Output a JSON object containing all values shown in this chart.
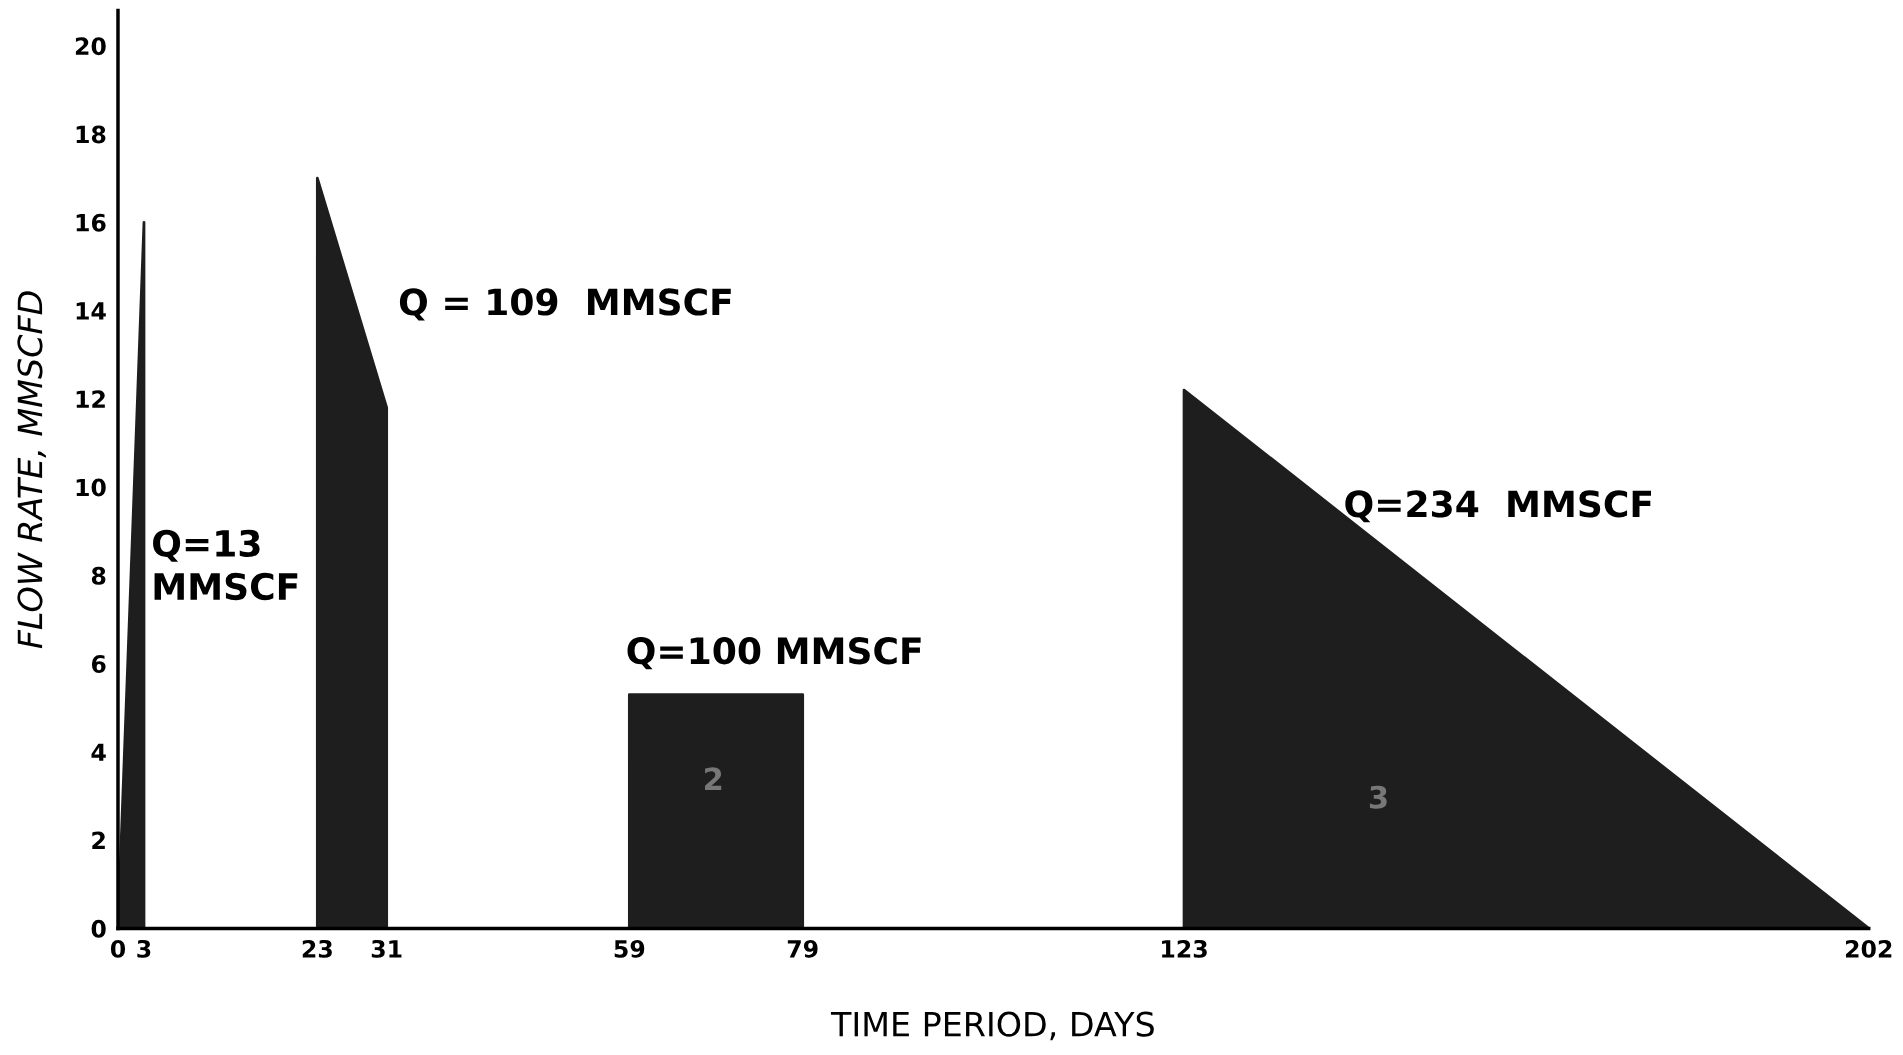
{
  "chart_data": {
    "type": "area",
    "xlabel": "TIME PERIOD, DAYS",
    "ylabel": "FLOW RATE, MMSCFD",
    "series": [
      {
        "color": "#1e1e1e",
        "x": [
          0,
          3,
          3
        ],
        "values": [
          0,
          16,
          0
        ]
      },
      {
        "color": "#1e1e1e",
        "x": [
          23,
          23,
          31,
          31
        ],
        "values": [
          0,
          17,
          11.8,
          0
        ]
      },
      {
        "color": "#1e1e1e",
        "x": [
          59,
          59,
          79,
          79
        ],
        "values": [
          0,
          5.3,
          5.3,
          0
        ]
      },
      {
        "color": "#1e1e1e",
        "x": [
          123,
          123,
          202
        ],
        "values": [
          0,
          12.2,
          0
        ]
      }
    ],
    "xlim": [
      0,
      202
    ],
    "ylim": [
      0,
      20.8
    ],
    "xticks": [
      0,
      3,
      23,
      31,
      59,
      79,
      123,
      202
    ],
    "yticks": [
      0,
      2,
      4,
      6,
      8,
      10,
      12,
      14,
      16,
      18,
      20
    ],
    "grid": false,
    "annotations": [
      "Q=13\nMMSCF",
      "Q = 109  MMSCF",
      "Q=100 MMSCF",
      "Q=234  MMSCF",
      "2",
      "3"
    ]
  }
}
